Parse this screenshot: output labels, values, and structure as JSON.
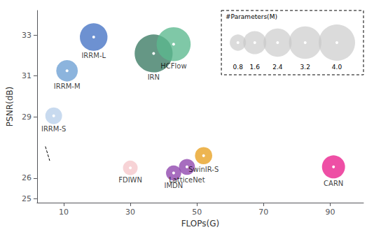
{
  "chart_data": {
    "type": "scatter",
    "xlabel": "FLOPs(G)",
    "ylabel": "PSNR(dB)",
    "x": [
      7,
      11,
      19,
      37,
      43,
      30,
      43,
      47,
      52,
      91
    ],
    "values": [
      29.05,
      31.25,
      32.9,
      32.1,
      32.55,
      26.5,
      26.25,
      26.55,
      27.1,
      26.55
    ],
    "sizes": [
      0.85,
      1.4,
      2.3,
      4.35,
      3.5,
      0.65,
      0.7,
      0.77,
      0.9,
      1.6
    ],
    "point_labels": [
      "IRRM-S",
      "IRRM-M",
      "IRRM-L",
      "IRN",
      "HCFlow",
      "FDIWN",
      "IMDN",
      "LatticeNet",
      "SwinIR-S",
      "CARN"
    ],
    "colors": [
      "#b8d0ea",
      "#6b9fd4",
      "#4472c4",
      "#3a7a63",
      "#5bb88e",
      "#f5c6cb",
      "#8e44ad",
      "#8e44ad",
      "#e8a020",
      "#e91e8c"
    ],
    "xlim": [
      2,
      100
    ],
    "ylim": [
      24.8,
      34.2
    ],
    "xticks": [
      10,
      30,
      50,
      70,
      90
    ],
    "yticks": [
      25,
      26,
      29,
      31,
      33
    ],
    "grid": false,
    "size_legend": {
      "title": "#Parameters(M)",
      "values": [
        0.8,
        1.6,
        2.4,
        3.2,
        4.0
      ],
      "value_labels": [
        "0.8",
        "1.6",
        "2.4",
        "3.2",
        "4.0"
      ]
    },
    "dashed_line": {
      "x": [
        4.5,
        5.8
      ],
      "y": [
        27.55,
        26.85
      ],
      "line_style": "dashed"
    }
  }
}
